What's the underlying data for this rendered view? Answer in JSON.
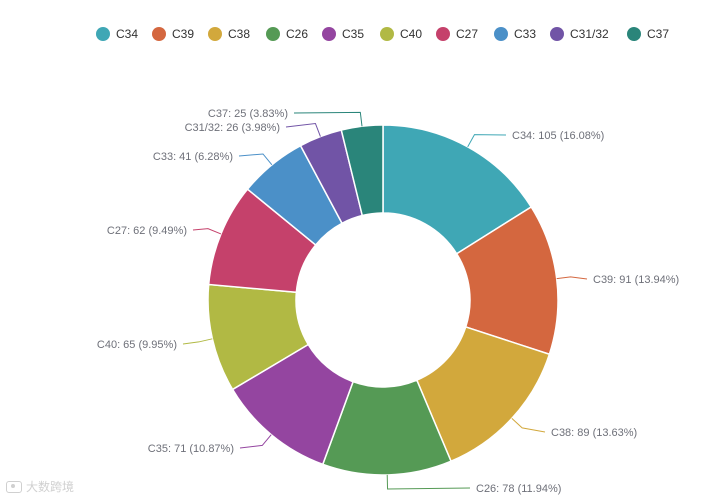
{
  "chart_data": {
    "type": "pie",
    "variant": "donut",
    "legend_position": "top",
    "slices": [
      {
        "name": "C34",
        "value": 105,
        "percent": "16.08%",
        "label": "C34: 105 (16.08%)",
        "color": "#3fa7b5"
      },
      {
        "name": "C39",
        "value": 91,
        "percent": "13.94%",
        "label": "C39: 91 (13.94%)",
        "color": "#d4673f"
      },
      {
        "name": "C38",
        "value": 89,
        "percent": "13.63%",
        "label": "C38: 89 (13.63%)",
        "color": "#d2a83c"
      },
      {
        "name": "C26",
        "value": 78,
        "percent": "11.94%",
        "label": "C26: 78 (11.94%)",
        "color": "#559a55"
      },
      {
        "name": "C35",
        "value": 71,
        "percent": "10.87%",
        "label": "C35: 71 (10.87%)",
        "color": "#9445a0"
      },
      {
        "name": "C40",
        "value": 65,
        "percent": "9.95%",
        "label": "C40: 65 (9.95%)",
        "color": "#b1b944"
      },
      {
        "name": "C27",
        "value": 62,
        "percent": "9.49%",
        "label": "C27: 62 (9.49%)",
        "color": "#c5416b"
      },
      {
        "name": "C33",
        "value": 41,
        "percent": "6.28%",
        "label": "C33: 41 (6.28%)",
        "color": "#4b90c8"
      },
      {
        "name": "C31/32",
        "value": 26,
        "percent": "3.98%",
        "label": "C31/32: 26 (3.98%)",
        "color": "#7154a6"
      },
      {
        "name": "C37",
        "value": 25,
        "percent": "3.83%",
        "label": "C37: 25 (3.83%)",
        "color": "#2a857a"
      }
    ]
  },
  "watermark": {
    "text": "大数跨境"
  }
}
